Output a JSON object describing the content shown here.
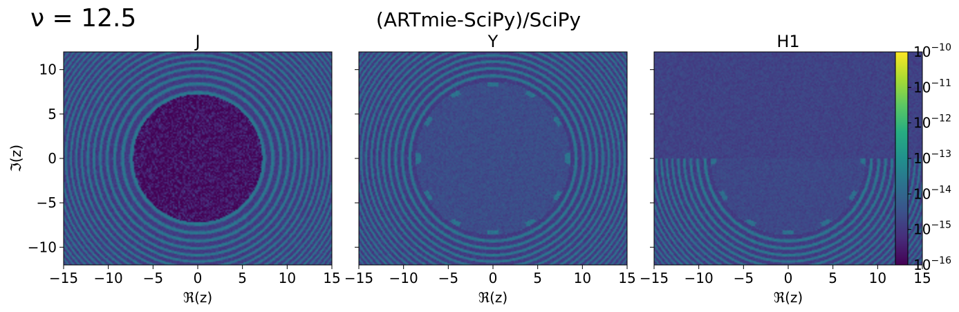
{
  "header": {
    "nu_label": "ν = 12.5",
    "title": "(ARTmie-SciPy)/SciPy"
  },
  "chart_data": [
    {
      "type": "heatmap",
      "title": "J",
      "xlabel": "ℜ(z)",
      "ylabel": "ℑ(z)",
      "xlim": [
        -15,
        15
      ],
      "ylim": [
        -12,
        12
      ],
      "x_ticks": [
        "−15",
        "−10",
        "−5",
        "0",
        "5",
        "10",
        "15"
      ],
      "y_ticks": [
        "10",
        "5",
        "0",
        "−5",
        "−10"
      ],
      "pattern": "concentric rings outside |z|≈7, low-noise disc inside |z|<7",
      "inner_disc_radius": 7.2,
      "inner_level_log10": -15.7,
      "ring_level_log10": -13.6,
      "background_level_log10": -14.6
    },
    {
      "type": "heatmap",
      "title": "Y",
      "xlabel": "ℜ(z)",
      "xlim": [
        -15,
        15
      ],
      "ylim": [
        -12,
        12
      ],
      "x_ticks": [
        "−15",
        "−10",
        "−5",
        "0",
        "5",
        "10",
        "15"
      ],
      "pattern": "concentric rings outside |z|≈8.5 with bright spots on boundary circle",
      "boundary_radius": 8.6,
      "inner_level_log10": -14.6,
      "ring_level_log10": -13.6
    },
    {
      "type": "heatmap",
      "title": "H1",
      "xlabel": "ℜ(z)",
      "xlim": [
        -15,
        15
      ],
      "ylim": [
        -12,
        12
      ],
      "x_ticks": [
        "−15",
        "−10",
        "−5",
        "0",
        "5",
        "10",
        "15"
      ],
      "pattern": "uniform noise in upper half-plane, rings in lower half-plane outside |z|≈8.5",
      "boundary_radius": 8.6,
      "upper_level_log10": -14.8,
      "ring_level_log10": -13.6
    }
  ],
  "colorbar": {
    "colormap": "viridis",
    "scale": "log",
    "range": [
      1e-16,
      1e-10
    ],
    "tick_base": "10",
    "tick_exponents": [
      "−10",
      "−11",
      "−12",
      "−13",
      "−14",
      "−15",
      "−16"
    ],
    "tick_values_log10": [
      -10,
      -11,
      -12,
      -13,
      -14,
      -15,
      -16
    ]
  }
}
